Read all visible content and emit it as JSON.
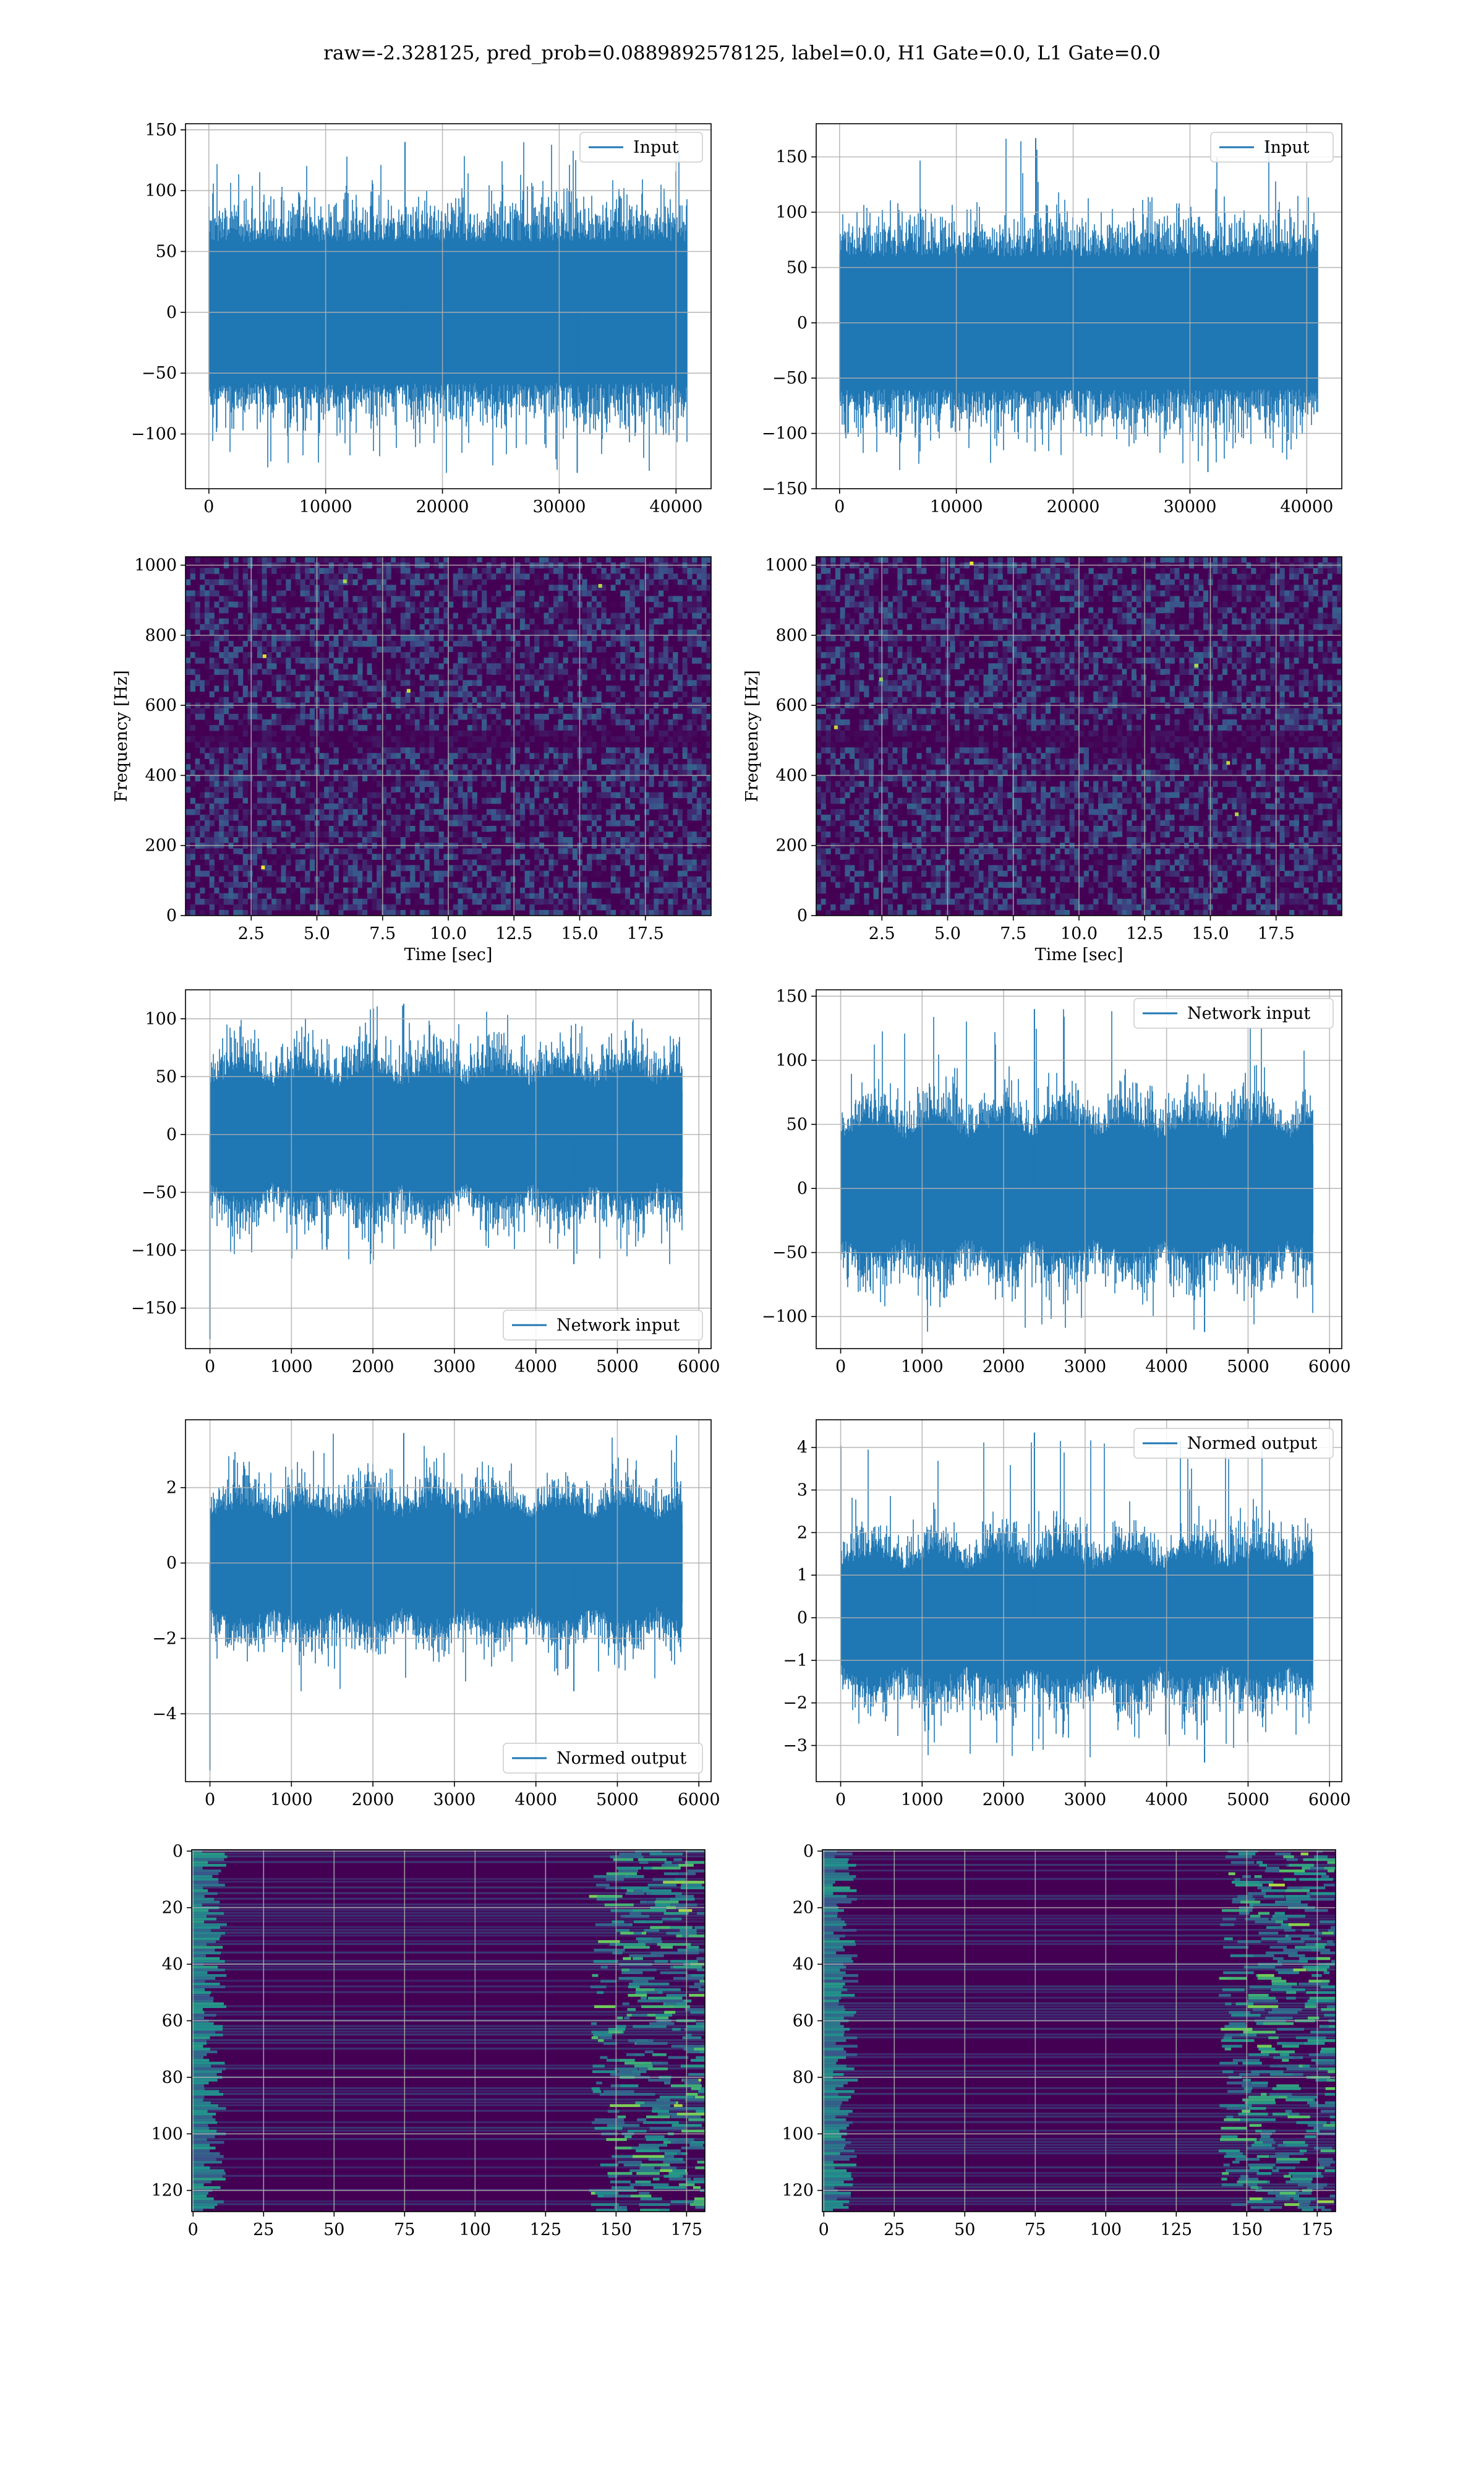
{
  "figure": {
    "title": "raw=-2.328125, pred_prob=0.0889892578125, label=0.0, H1 Gate=0.0, L1 Gate=0.0"
  },
  "colors": {
    "line": "#1f77b4",
    "grid": "#b0b0b0",
    "viridis_dark": "#440154",
    "viridis_mid": "#3b528b",
    "viridis_teal": "#21918c",
    "viridis_green": "#5ec962",
    "viridis_yellow": "#fde725"
  },
  "chart_data": [
    {
      "id": "p00",
      "type": "line",
      "series": [
        {
          "name": "Input"
        }
      ],
      "legend": "upper right",
      "xlim": [
        -2000,
        43000
      ],
      "ylim": [
        -145,
        155
      ],
      "xticks": [
        0,
        10000,
        20000,
        30000,
        40000
      ],
      "xtick_labels": [
        "0",
        "10000",
        "20000",
        "30000",
        "40000"
      ],
      "yticks": [
        -100,
        -50,
        0,
        50,
        100,
        150
      ],
      "ytick_labels": [
        "−100",
        "−50",
        "0",
        "50",
        "100",
        "150"
      ],
      "xlabel": "",
      "ylabel": "",
      "grid": true,
      "signal": {
        "n": 40960,
        "core": 58,
        "peak_max": 140,
        "peak_min": -132,
        "edge_spike": null,
        "shape": "flat"
      }
    },
    {
      "id": "p01",
      "type": "line",
      "series": [
        {
          "name": "Input"
        }
      ],
      "legend": "upper right",
      "xlim": [
        -2000,
        43000
      ],
      "ylim": [
        -150,
        180
      ],
      "xticks": [
        0,
        10000,
        20000,
        30000,
        40000
      ],
      "xtick_labels": [
        "0",
        "10000",
        "20000",
        "30000",
        "40000"
      ],
      "yticks": [
        -150,
        -100,
        -50,
        0,
        50,
        100,
        150
      ],
      "ytick_labels": [
        "−150",
        "−100",
        "−50",
        "0",
        "50",
        "100",
        "150"
      ],
      "xlabel": "",
      "ylabel": "",
      "grid": true,
      "signal": {
        "n": 40960,
        "core": 60,
        "peak_max": 167,
        "peak_min": -135,
        "edge_spike": null,
        "shape": "flat"
      }
    },
    {
      "id": "p10",
      "type": "heatmap",
      "xlim": [
        0,
        20
      ],
      "ylim": [
        0,
        1024
      ],
      "xticks": [
        2.5,
        5.0,
        7.5,
        10.0,
        12.5,
        15.0,
        17.5
      ],
      "xtick_labels": [
        "2.5",
        "5.0",
        "7.5",
        "10.0",
        "12.5",
        "15.0",
        "17.5"
      ],
      "yticks": [
        0,
        200,
        400,
        600,
        800,
        1000
      ],
      "ytick_labels": [
        "0",
        "200",
        "400",
        "600",
        "800",
        "1000"
      ],
      "xlabel": "Time [sec]",
      "ylabel": "Frequency [Hz]",
      "grid": true,
      "notch_hz": [
        490,
        510
      ],
      "colormap": "viridis"
    },
    {
      "id": "p11",
      "type": "heatmap",
      "xlim": [
        0,
        20
      ],
      "ylim": [
        0,
        1024
      ],
      "xticks": [
        2.5,
        5.0,
        7.5,
        10.0,
        12.5,
        15.0,
        17.5
      ],
      "xtick_labels": [
        "2.5",
        "5.0",
        "7.5",
        "10.0",
        "12.5",
        "15.0",
        "17.5"
      ],
      "yticks": [
        0,
        200,
        400,
        600,
        800,
        1000
      ],
      "ytick_labels": [
        "0",
        "200",
        "400",
        "600",
        "800",
        "1000"
      ],
      "xlabel": "Time [sec]",
      "ylabel": "Frequency [Hz]",
      "grid": true,
      "notch_hz": [
        490,
        510
      ],
      "colormap": "viridis"
    },
    {
      "id": "p20",
      "type": "line",
      "series": [
        {
          "name": "Network input"
        }
      ],
      "legend": "lower right",
      "xlim": [
        -300,
        6150
      ],
      "ylim": [
        -185,
        125
      ],
      "xticks": [
        0,
        1000,
        2000,
        3000,
        4000,
        5000,
        6000
      ],
      "xtick_labels": [
        "0",
        "1000",
        "2000",
        "3000",
        "4000",
        "5000",
        "6000"
      ],
      "yticks": [
        -150,
        -100,
        -50,
        0,
        50,
        100
      ],
      "ytick_labels": [
        "−150",
        "−100",
        "−50",
        "0",
        "50",
        "100"
      ],
      "xlabel": "",
      "ylabel": "",
      "grid": true,
      "signal": {
        "n": 5800,
        "core": 48,
        "peak_max": 113,
        "peak_min": -112,
        "edge_spike": -177,
        "shape": "bursty"
      }
    },
    {
      "id": "p21",
      "type": "line",
      "series": [
        {
          "name": "Network input"
        }
      ],
      "legend": "upper right",
      "xlim": [
        -300,
        6150
      ],
      "ylim": [
        -125,
        155
      ],
      "xticks": [
        0,
        1000,
        2000,
        3000,
        4000,
        5000,
        6000
      ],
      "xtick_labels": [
        "0",
        "1000",
        "2000",
        "3000",
        "4000",
        "5000",
        "6000"
      ],
      "yticks": [
        -100,
        -50,
        0,
        50,
        100,
        150
      ],
      "ytick_labels": [
        "−100",
        "−50",
        "0",
        "50",
        "100",
        "150"
      ],
      "xlabel": "",
      "ylabel": "",
      "grid": true,
      "signal": {
        "n": 5800,
        "core": 45,
        "peak_max": 140,
        "peak_min": -112,
        "edge_spike": null,
        "shape": "bursty"
      }
    },
    {
      "id": "p30",
      "type": "line",
      "series": [
        {
          "name": "Normed output"
        }
      ],
      "legend": "lower right",
      "xlim": [
        -300,
        6150
      ],
      "ylim": [
        -5.8,
        3.8
      ],
      "xticks": [
        0,
        1000,
        2000,
        3000,
        4000,
        5000,
        6000
      ],
      "xtick_labels": [
        "0",
        "1000",
        "2000",
        "3000",
        "4000",
        "5000",
        "6000"
      ],
      "yticks": [
        -4,
        -2,
        0,
        2
      ],
      "ytick_labels": [
        "−4",
        "−2",
        "0",
        "2"
      ],
      "xlabel": "",
      "ylabel": "",
      "grid": true,
      "signal": {
        "n": 5800,
        "core": 1.35,
        "peak_max": 3.45,
        "peak_min": -3.4,
        "edge_spike": -5.5,
        "shape": "bursty"
      }
    },
    {
      "id": "p31",
      "type": "line",
      "series": [
        {
          "name": "Normed output"
        }
      ],
      "legend": "upper right",
      "xlim": [
        -300,
        6150
      ],
      "ylim": [
        -3.85,
        4.65
      ],
      "xticks": [
        0,
        1000,
        2000,
        3000,
        4000,
        5000,
        6000
      ],
      "xtick_labels": [
        "0",
        "1000",
        "2000",
        "3000",
        "4000",
        "5000",
        "6000"
      ],
      "yticks": [
        -3,
        -2,
        -1,
        0,
        1,
        2,
        3,
        4
      ],
      "ytick_labels": [
        "−3",
        "−2",
        "−1",
        "0",
        "1",
        "2",
        "3",
        "4"
      ],
      "xlabel": "",
      "ylabel": "",
      "grid": true,
      "signal": {
        "n": 5800,
        "core": 1.3,
        "peak_max": 4.35,
        "peak_min": -3.4,
        "edge_spike": null,
        "shape": "bursty"
      }
    },
    {
      "id": "p40",
      "type": "heatmap",
      "xlim": [
        -0.5,
        181.5
      ],
      "ylim": [
        127.5,
        -0.5
      ],
      "xticks": [
        0,
        25,
        50,
        75,
        100,
        125,
        150,
        175
      ],
      "xtick_labels": [
        "0",
        "25",
        "50",
        "75",
        "100",
        "125",
        "150",
        "175"
      ],
      "yticks": [
        0,
        20,
        40,
        60,
        80,
        100,
        120
      ],
      "ytick_labels": [
        "0",
        "20",
        "40",
        "60",
        "80",
        "100",
        "120"
      ],
      "xlabel": "",
      "ylabel": "",
      "grid": true,
      "shape": [
        128,
        182
      ],
      "colormap": "viridis"
    },
    {
      "id": "p41",
      "type": "heatmap",
      "xlim": [
        -0.5,
        181.5
      ],
      "ylim": [
        127.5,
        -0.5
      ],
      "xticks": [
        0,
        25,
        50,
        75,
        100,
        125,
        150,
        175
      ],
      "xtick_labels": [
        "0",
        "25",
        "50",
        "75",
        "100",
        "125",
        "150",
        "175"
      ],
      "yticks": [
        0,
        20,
        40,
        60,
        80,
        100,
        120
      ],
      "ytick_labels": [
        "0",
        "20",
        "40",
        "60",
        "80",
        "100",
        "120"
      ],
      "xlabel": "",
      "ylabel": "",
      "grid": true,
      "shape": [
        128,
        182
      ],
      "colormap": "viridis"
    }
  ]
}
